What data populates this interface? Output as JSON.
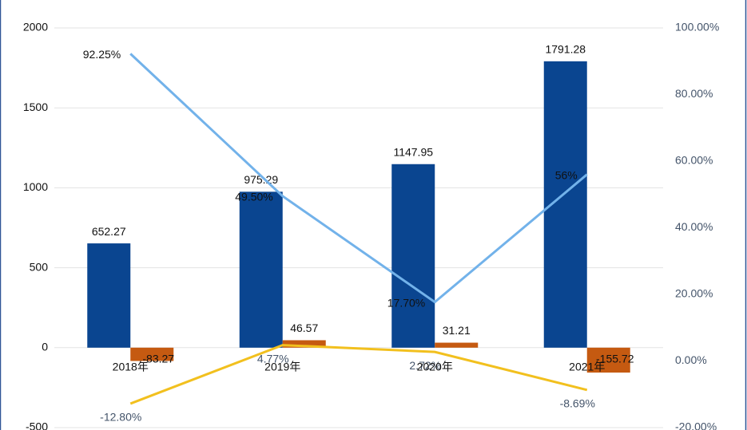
{
  "chart_data": {
    "type": "bar",
    "categories": [
      "2018年",
      "2019年",
      "2020年",
      "2021年"
    ],
    "series": [
      {
        "type": "bar",
        "color": "#0a4590",
        "values": [
          652.27,
          975.29,
          1147.95,
          1791.28
        ]
      },
      {
        "type": "bar",
        "color": "#c55a11",
        "values": [
          -83.27,
          46.57,
          31.21,
          -155.72
        ]
      },
      {
        "type": "line",
        "axis": "y2",
        "color": "#72b2ea",
        "values": [
          92.25,
          49.5,
          17.7,
          56
        ],
        "value_labels": [
          "92.25%",
          "49.50%",
          "17.70%",
          "56%"
        ]
      },
      {
        "type": "line",
        "axis": "y2",
        "color": "#f2c01e",
        "values": [
          -12.8,
          4.77,
          2.72,
          -8.69
        ],
        "value_labels": [
          "-12.80%",
          "4.77%",
          "2.72%",
          "-8.69%"
        ]
      }
    ],
    "ylim": [
      -500,
      2000
    ],
    "yticks": [
      -500,
      0,
      500,
      1000,
      1500,
      2000
    ],
    "y2lim": [
      -20,
      100
    ],
    "y2ticks": [
      {
        "value": -20,
        "label": "-20.00%"
      },
      {
        "value": 0,
        "label": "0.00%"
      },
      {
        "value": 20,
        "label": "20.00%"
      },
      {
        "value": 40,
        "label": "40.00%"
      },
      {
        "value": 60,
        "label": "60.00%"
      },
      {
        "value": 80,
        "label": "80.00%"
      },
      {
        "value": 100,
        "label": "100.00%"
      }
    ],
    "grid": true
  }
}
